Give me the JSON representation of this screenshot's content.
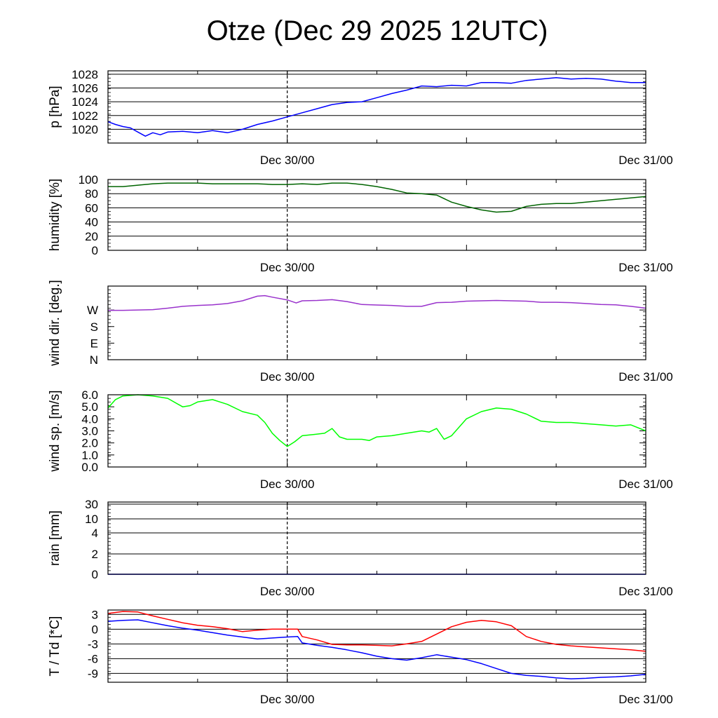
{
  "title": "Otze (Dec 29 2025 12UTC)",
  "chart_data": [
    {
      "type": "line",
      "ylabel": "p [hPa]",
      "ylim": [
        1018,
        1028.5
      ],
      "yticks": [
        "1020",
        "1022",
        "1024",
        "1026",
        "1028"
      ],
      "ytick_values": [
        1020,
        1022,
        1024,
        1026,
        1028
      ],
      "grid": true,
      "x_range_hours": [
        0,
        36
      ],
      "xtick_labels": [
        "Dec 30/00",
        "Dec 31/00"
      ],
      "xtick_hours": [
        12,
        36
      ],
      "series": [
        {
          "color": "#0000ff",
          "x": [
            0,
            0.5,
            1,
            1.5,
            2,
            2.5,
            3,
            3.5,
            4,
            5,
            6,
            7,
            8,
            9,
            10,
            11,
            12,
            13,
            14,
            15,
            16,
            17,
            18,
            19,
            20,
            21,
            22,
            23,
            24,
            25,
            26,
            27,
            28,
            29,
            30,
            31,
            32,
            33,
            34,
            35,
            36
          ],
          "y": [
            1021.1,
            1020.7,
            1020.4,
            1020.2,
            1019.6,
            1019.0,
            1019.5,
            1019.2,
            1019.6,
            1019.7,
            1019.5,
            1019.8,
            1019.5,
            1020.0,
            1020.7,
            1021.2,
            1021.8,
            1022.4,
            1023.0,
            1023.6,
            1023.9,
            1024.0,
            1024.6,
            1025.2,
            1025.7,
            1026.3,
            1026.2,
            1026.4,
            1026.3,
            1026.8,
            1026.8,
            1026.7,
            1027.1,
            1027.3,
            1027.5,
            1027.3,
            1027.4,
            1027.3,
            1027.0,
            1026.8,
            1026.8
          ]
        }
      ]
    },
    {
      "type": "line",
      "ylabel": "humidity [%]",
      "ylim": [
        0,
        100
      ],
      "yticks": [
        "0",
        "20",
        "40",
        "60",
        "80",
        "100"
      ],
      "ytick_values": [
        0,
        20,
        40,
        60,
        80,
        100
      ],
      "grid": true,
      "x_range_hours": [
        0,
        36
      ],
      "xtick_labels": [
        "Dec 30/00",
        "Dec 31/00"
      ],
      "xtick_hours": [
        12,
        36
      ],
      "series": [
        {
          "color": "#006400",
          "x": [
            0,
            1,
            2,
            3,
            4,
            5,
            6,
            7,
            8,
            9,
            10,
            11,
            12,
            13,
            14,
            15,
            16,
            17,
            18,
            19,
            20,
            21,
            22,
            23,
            24,
            25,
            26,
            27,
            28,
            29,
            30,
            31,
            32,
            33,
            34,
            35,
            36
          ],
          "y": [
            90,
            90,
            92,
            94,
            95,
            95,
            95,
            94,
            94,
            94,
            94,
            93,
            93,
            94,
            93,
            95,
            95,
            93,
            90,
            86,
            81,
            80,
            78,
            68,
            62,
            57,
            54,
            55,
            62,
            65,
            66,
            66,
            68,
            70,
            72,
            74,
            76
          ]
        }
      ]
    },
    {
      "type": "line",
      "ylabel": "wind dir. [deg.]",
      "ylim": [
        0,
        400
      ],
      "yticks": [
        "N",
        "E",
        "S",
        "W"
      ],
      "ytick_values": [
        0,
        90,
        180,
        270
      ],
      "grid": false,
      "x_range_hours": [
        0,
        36
      ],
      "xtick_labels": [
        "Dec 30/00",
        "Dec 31/00"
      ],
      "xtick_hours": [
        12,
        36
      ],
      "series": [
        {
          "color": "#9932cc",
          "x": [
            0,
            1,
            2,
            3,
            4,
            5,
            6,
            7,
            8,
            9,
            10,
            10.5,
            11,
            12,
            12.6,
            13,
            14,
            15,
            16,
            17,
            18,
            19,
            20,
            21,
            22,
            23,
            24,
            25,
            26,
            27,
            28,
            29,
            30,
            31,
            32,
            33,
            34,
            35,
            36
          ],
          "y": [
            268,
            268,
            270,
            272,
            280,
            290,
            295,
            298,
            305,
            320,
            345,
            348,
            340,
            325,
            308,
            320,
            322,
            326,
            316,
            300,
            297,
            295,
            290,
            290,
            310,
            312,
            318,
            320,
            322,
            320,
            318,
            312,
            312,
            310,
            305,
            300,
            298,
            290,
            280
          ]
        }
      ]
    },
    {
      "type": "line",
      "ylabel": "wind sp. [m/s]",
      "ylim": [
        0,
        6.0
      ],
      "yticks": [
        "0.0",
        "1.0",
        "2.0",
        "3.0",
        "4.0",
        "5.0",
        "6.0"
      ],
      "ytick_values": [
        0,
        1,
        2,
        3,
        4,
        5,
        6
      ],
      "grid": false,
      "x_range_hours": [
        0,
        36
      ],
      "xtick_labels": [
        "Dec 30/00",
        "Dec 31/00"
      ],
      "xtick_hours": [
        12,
        36
      ],
      "series": [
        {
          "color": "#00ff00",
          "x": [
            0,
            0.5,
            1,
            2,
            3,
            4,
            5,
            5.5,
            6,
            7,
            7.5,
            8,
            9,
            10,
            10.5,
            11,
            11.5,
            12,
            12.5,
            13,
            13.8,
            14.5,
            15,
            15.5,
            16,
            17,
            17.5,
            18,
            19,
            20,
            21,
            21.5,
            22,
            22.5,
            23,
            24,
            25,
            26,
            27,
            28,
            29,
            30,
            31,
            32,
            33,
            34,
            35,
            36
          ],
          "y": [
            4.9,
            5.6,
            5.9,
            6.0,
            5.9,
            5.7,
            5.0,
            5.1,
            5.4,
            5.6,
            5.4,
            5.2,
            4.6,
            4.3,
            3.7,
            2.8,
            2.2,
            1.7,
            2.1,
            2.6,
            2.7,
            2.8,
            3.2,
            2.5,
            2.3,
            2.3,
            2.2,
            2.5,
            2.6,
            2.8,
            3.0,
            2.9,
            3.2,
            2.3,
            2.6,
            4.0,
            4.6,
            4.9,
            4.8,
            4.4,
            3.8,
            3.7,
            3.7,
            3.6,
            3.5,
            3.4,
            3.5,
            3.0
          ]
        }
      ]
    },
    {
      "type": "line",
      "ylabel": "rain [mm]",
      "yticks": [
        "0",
        "2",
        "4",
        "10",
        "30"
      ],
      "ytick_values": [
        0,
        2,
        4,
        10,
        30
      ],
      "yscale": "nonlinear",
      "grid": true,
      "x_range_hours": [
        0,
        36
      ],
      "xtick_labels": [
        "Dec 30/00",
        "Dec 31/00"
      ],
      "xtick_hours": [
        12,
        36
      ],
      "series": [
        {
          "color": "#0000ff",
          "x": [
            0,
            36
          ],
          "y": [
            0,
            0
          ]
        }
      ]
    },
    {
      "type": "line",
      "ylabel": "T / Td [*C]",
      "ylim": [
        -10.8,
        3.9
      ],
      "yticks": [
        "-9",
        "-6",
        "-3",
        "0",
        "3"
      ],
      "ytick_values": [
        -9,
        -6,
        -3,
        0,
        3
      ],
      "grid": true,
      "x_range_hours": [
        0,
        36
      ],
      "xtick_labels": [
        "Dec 30/00",
        "Dec 31/00"
      ],
      "xtick_hours": [
        12,
        36
      ],
      "series": [
        {
          "color": "#ff0000",
          "x": [
            0,
            1,
            2,
            3,
            4,
            5,
            6,
            7,
            8,
            9,
            10,
            11,
            12,
            12.7,
            13,
            14,
            15,
            16,
            17,
            18,
            19,
            20,
            21,
            22,
            23,
            24,
            25,
            26,
            27,
            28,
            29,
            30,
            31,
            32,
            33,
            34,
            35,
            36
          ],
          "y": [
            3.2,
            3.6,
            3.5,
            2.7,
            2.0,
            1.3,
            0.8,
            0.5,
            0.1,
            -0.5,
            -0.2,
            0.0,
            0.0,
            0.0,
            -1.5,
            -2.2,
            -3.1,
            -3.2,
            -3.2,
            -3.3,
            -3.4,
            -3.0,
            -2.5,
            -1.0,
            0.5,
            1.4,
            1.8,
            1.5,
            0.7,
            -1.5,
            -2.5,
            -3.1,
            -3.4,
            -3.6,
            -3.8,
            -4.0,
            -4.2,
            -4.5
          ]
        },
        {
          "color": "#0000ff",
          "x": [
            0,
            1,
            2,
            3,
            4,
            5,
            6,
            7,
            8,
            9,
            10,
            11,
            12,
            12.7,
            13,
            14,
            15,
            16,
            17,
            18,
            19,
            20,
            21,
            22,
            23,
            24,
            25,
            26,
            27,
            28,
            29,
            30,
            31,
            32,
            33,
            34,
            35,
            36
          ],
          "y": [
            1.6,
            1.8,
            1.9,
            1.3,
            0.7,
            0.2,
            -0.2,
            -0.7,
            -1.2,
            -1.6,
            -2.0,
            -1.8,
            -1.6,
            -1.5,
            -2.8,
            -3.3,
            -3.7,
            -4.2,
            -4.8,
            -5.5,
            -6.0,
            -6.3,
            -5.8,
            -5.2,
            -5.7,
            -6.2,
            -7.0,
            -8.0,
            -9.0,
            -9.4,
            -9.6,
            -9.9,
            -10.1,
            -10.0,
            -9.8,
            -9.7,
            -9.5,
            -9.2
          ]
        }
      ]
    }
  ]
}
